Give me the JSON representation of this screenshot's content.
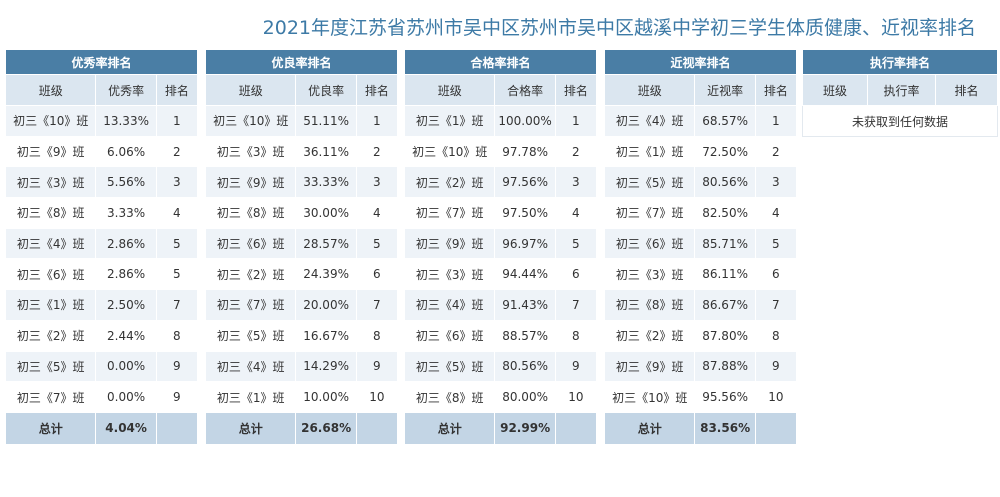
{
  "title": "2021年度江苏省苏州市吴中区苏州市吴中区越溪中学初三学生体质健康、近视率排名",
  "col_class": "班级",
  "col_rank": "排名",
  "total_label": "总计",
  "panels": [
    {
      "title": "优秀率排名",
      "metric": "优秀率",
      "rows": [
        {
          "cls": "初三《10》班",
          "val": "13.33%",
          "rank": "1"
        },
        {
          "cls": "初三《9》班",
          "val": "6.06%",
          "rank": "2"
        },
        {
          "cls": "初三《3》班",
          "val": "5.56%",
          "rank": "3"
        },
        {
          "cls": "初三《8》班",
          "val": "3.33%",
          "rank": "4"
        },
        {
          "cls": "初三《4》班",
          "val": "2.86%",
          "rank": "5"
        },
        {
          "cls": "初三《6》班",
          "val": "2.86%",
          "rank": "5"
        },
        {
          "cls": "初三《1》班",
          "val": "2.50%",
          "rank": "7"
        },
        {
          "cls": "初三《2》班",
          "val": "2.44%",
          "rank": "8"
        },
        {
          "cls": "初三《5》班",
          "val": "0.00%",
          "rank": "9"
        },
        {
          "cls": "初三《7》班",
          "val": "0.00%",
          "rank": "9"
        }
      ],
      "total": "4.04%"
    },
    {
      "title": "优良率排名",
      "metric": "优良率",
      "rows": [
        {
          "cls": "初三《10》班",
          "val": "51.11%",
          "rank": "1"
        },
        {
          "cls": "初三《3》班",
          "val": "36.11%",
          "rank": "2"
        },
        {
          "cls": "初三《9》班",
          "val": "33.33%",
          "rank": "3"
        },
        {
          "cls": "初三《8》班",
          "val": "30.00%",
          "rank": "4"
        },
        {
          "cls": "初三《6》班",
          "val": "28.57%",
          "rank": "5"
        },
        {
          "cls": "初三《2》班",
          "val": "24.39%",
          "rank": "6"
        },
        {
          "cls": "初三《7》班",
          "val": "20.00%",
          "rank": "7"
        },
        {
          "cls": "初三《5》班",
          "val": "16.67%",
          "rank": "8"
        },
        {
          "cls": "初三《4》班",
          "val": "14.29%",
          "rank": "9"
        },
        {
          "cls": "初三《1》班",
          "val": "10.00%",
          "rank": "10"
        }
      ],
      "total": "26.68%"
    },
    {
      "title": "合格率排名",
      "metric": "合格率",
      "rows": [
        {
          "cls": "初三《1》班",
          "val": "100.00%",
          "rank": "1"
        },
        {
          "cls": "初三《10》班",
          "val": "97.78%",
          "rank": "2"
        },
        {
          "cls": "初三《2》班",
          "val": "97.56%",
          "rank": "3"
        },
        {
          "cls": "初三《7》班",
          "val": "97.50%",
          "rank": "4"
        },
        {
          "cls": "初三《9》班",
          "val": "96.97%",
          "rank": "5"
        },
        {
          "cls": "初三《3》班",
          "val": "94.44%",
          "rank": "6"
        },
        {
          "cls": "初三《4》班",
          "val": "91.43%",
          "rank": "7"
        },
        {
          "cls": "初三《6》班",
          "val": "88.57%",
          "rank": "8"
        },
        {
          "cls": "初三《5》班",
          "val": "80.56%",
          "rank": "9"
        },
        {
          "cls": "初三《8》班",
          "val": "80.00%",
          "rank": "10"
        }
      ],
      "total": "92.99%"
    },
    {
      "title": "近视率排名",
      "metric": "近视率",
      "rows": [
        {
          "cls": "初三《4》班",
          "val": "68.57%",
          "rank": "1"
        },
        {
          "cls": "初三《1》班",
          "val": "72.50%",
          "rank": "2"
        },
        {
          "cls": "初三《5》班",
          "val": "80.56%",
          "rank": "3"
        },
        {
          "cls": "初三《7》班",
          "val": "82.50%",
          "rank": "4"
        },
        {
          "cls": "初三《6》班",
          "val": "85.71%",
          "rank": "5"
        },
        {
          "cls": "初三《3》班",
          "val": "86.11%",
          "rank": "6"
        },
        {
          "cls": "初三《8》班",
          "val": "86.67%",
          "rank": "7"
        },
        {
          "cls": "初三《2》班",
          "val": "87.80%",
          "rank": "8"
        },
        {
          "cls": "初三《9》班",
          "val": "87.88%",
          "rank": "9"
        },
        {
          "cls": "初三《10》班",
          "val": "95.56%",
          "rank": "10"
        }
      ],
      "total": "83.56%"
    }
  ],
  "exec_panel": {
    "title": "执行率排名",
    "metric": "执行率",
    "empty_text": "未获取到任何数据"
  },
  "colors": {
    "header_bg": "#4a7ea5",
    "subheader_bg": "#dbe6f0",
    "stripe_bg": "#eef3f8",
    "total_bg": "#c3d5e5",
    "title_color": "#3d7aa6"
  }
}
